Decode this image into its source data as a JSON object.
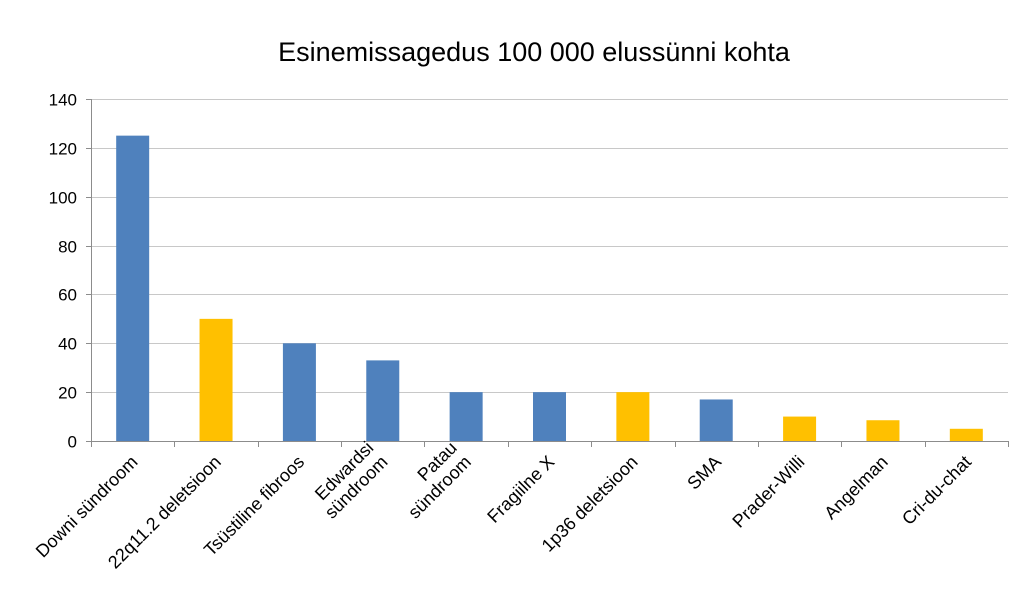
{
  "chart_data": {
    "type": "bar",
    "title": "Esinemissagedus 100 000 elussünni kohta",
    "xlabel": "",
    "ylabel": "",
    "ylim": [
      0,
      140
    ],
    "yticks": [
      0,
      20,
      40,
      60,
      80,
      100,
      120,
      140
    ],
    "grid": true,
    "legend": "none",
    "categories": [
      [
        "Downi sündroom"
      ],
      [
        "22q11.2 deletsioon"
      ],
      [
        "Tsüstiline fibroos"
      ],
      [
        "Edwardsi",
        "sündroom"
      ],
      [
        "Patau",
        "sündroom"
      ],
      [
        "Fragiilne X"
      ],
      [
        "1p36 deletsioon"
      ],
      [
        "SMA"
      ],
      [
        "Prader-Willi"
      ],
      [
        "Angelman"
      ],
      [
        "Cri-du-chat"
      ]
    ],
    "values": [
      125,
      50,
      40,
      33,
      20,
      20,
      20,
      17,
      10,
      8.5,
      5
    ],
    "bar_colors": [
      "#4f81bd",
      "#ffc000",
      "#4f81bd",
      "#4f81bd",
      "#4f81bd",
      "#4f81bd",
      "#ffc000",
      "#4f81bd",
      "#ffc000",
      "#ffc000",
      "#ffc000"
    ]
  }
}
